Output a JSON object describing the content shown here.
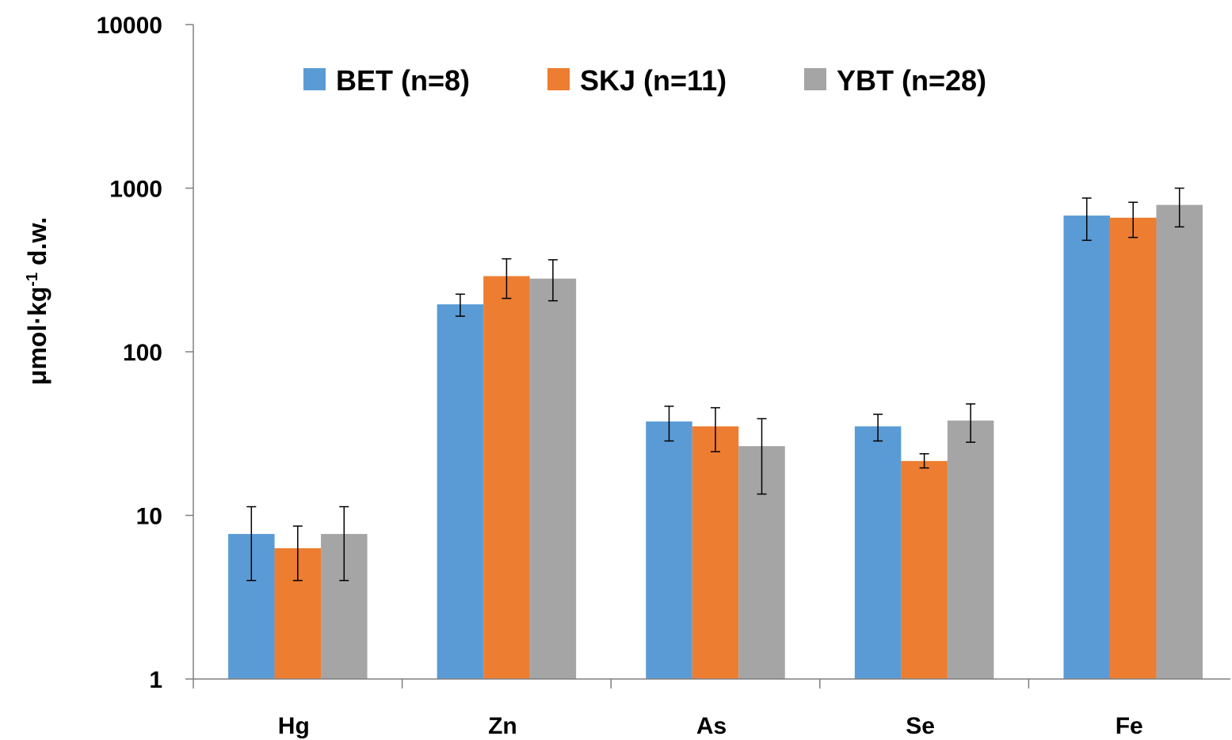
{
  "chart_data": {
    "type": "bar",
    "title": "",
    "xlabel": "",
    "ylabel": "μmol·kg",
    "ylabel_superscript": "-1",
    "ylabel_suffix": " d.w.",
    "yscale": "log",
    "ylim": [
      1,
      10000
    ],
    "yticks": [
      "1",
      "10",
      "100",
      "1000",
      "10000"
    ],
    "categories": [
      "Hg",
      "Zn",
      "As",
      "Se",
      "Fe"
    ],
    "legend_position": "top",
    "grid": false,
    "series": [
      {
        "name": "BET (n=8)",
        "color": "#5B9BD5",
        "values": [
          7.7,
          195,
          37.5,
          35,
          680
        ],
        "err_low": [
          4,
          165,
          28.5,
          28.5,
          480
        ],
        "err_high": [
          11.3,
          225,
          46.5,
          41.5,
          870
        ]
      },
      {
        "name": "SKJ (n=11)",
        "color": "#ED7D31",
        "values": [
          6.3,
          290,
          35,
          21.5,
          660
        ],
        "err_low": [
          4,
          212,
          24.5,
          19.5,
          500
        ],
        "err_high": [
          8.6,
          370,
          45.5,
          23.8,
          820
        ]
      },
      {
        "name": "YBT (n=28)",
        "color": "#A5A5A5",
        "values": [
          7.7,
          280,
          26.5,
          38,
          790
        ],
        "err_low": [
          4,
          205,
          13.5,
          28,
          580
        ],
        "err_high": [
          11.3,
          365,
          39,
          48,
          1000
        ]
      }
    ]
  }
}
